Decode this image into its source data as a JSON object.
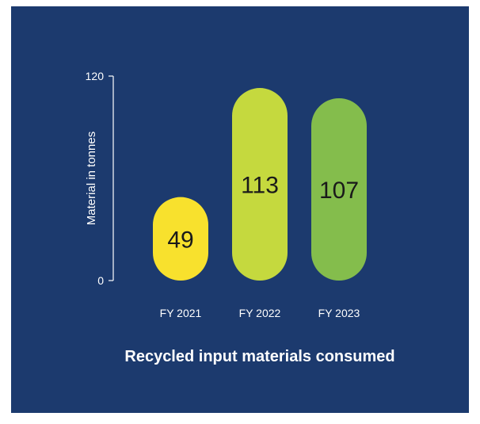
{
  "chart_data": {
    "type": "bar",
    "title": "Recycled input materials consumed",
    "xlabel": "",
    "ylabel": "Material in tonnes",
    "ylim": [
      0,
      120
    ],
    "y_ticks": [
      0,
      120
    ],
    "categories": [
      "FY 2021",
      "FY 2022",
      "FY 2023"
    ],
    "values": [
      49,
      113,
      107
    ],
    "bar_colors": [
      "#f8e12d",
      "#c5d93e",
      "#84bd4c"
    ],
    "bar_shape": "rounded",
    "grid": false,
    "legend": "none"
  },
  "colors": {
    "background": "#1c3a6e",
    "axis": "#ffffff",
    "text": "#ffffff",
    "value_label": "#1a1a1a"
  }
}
